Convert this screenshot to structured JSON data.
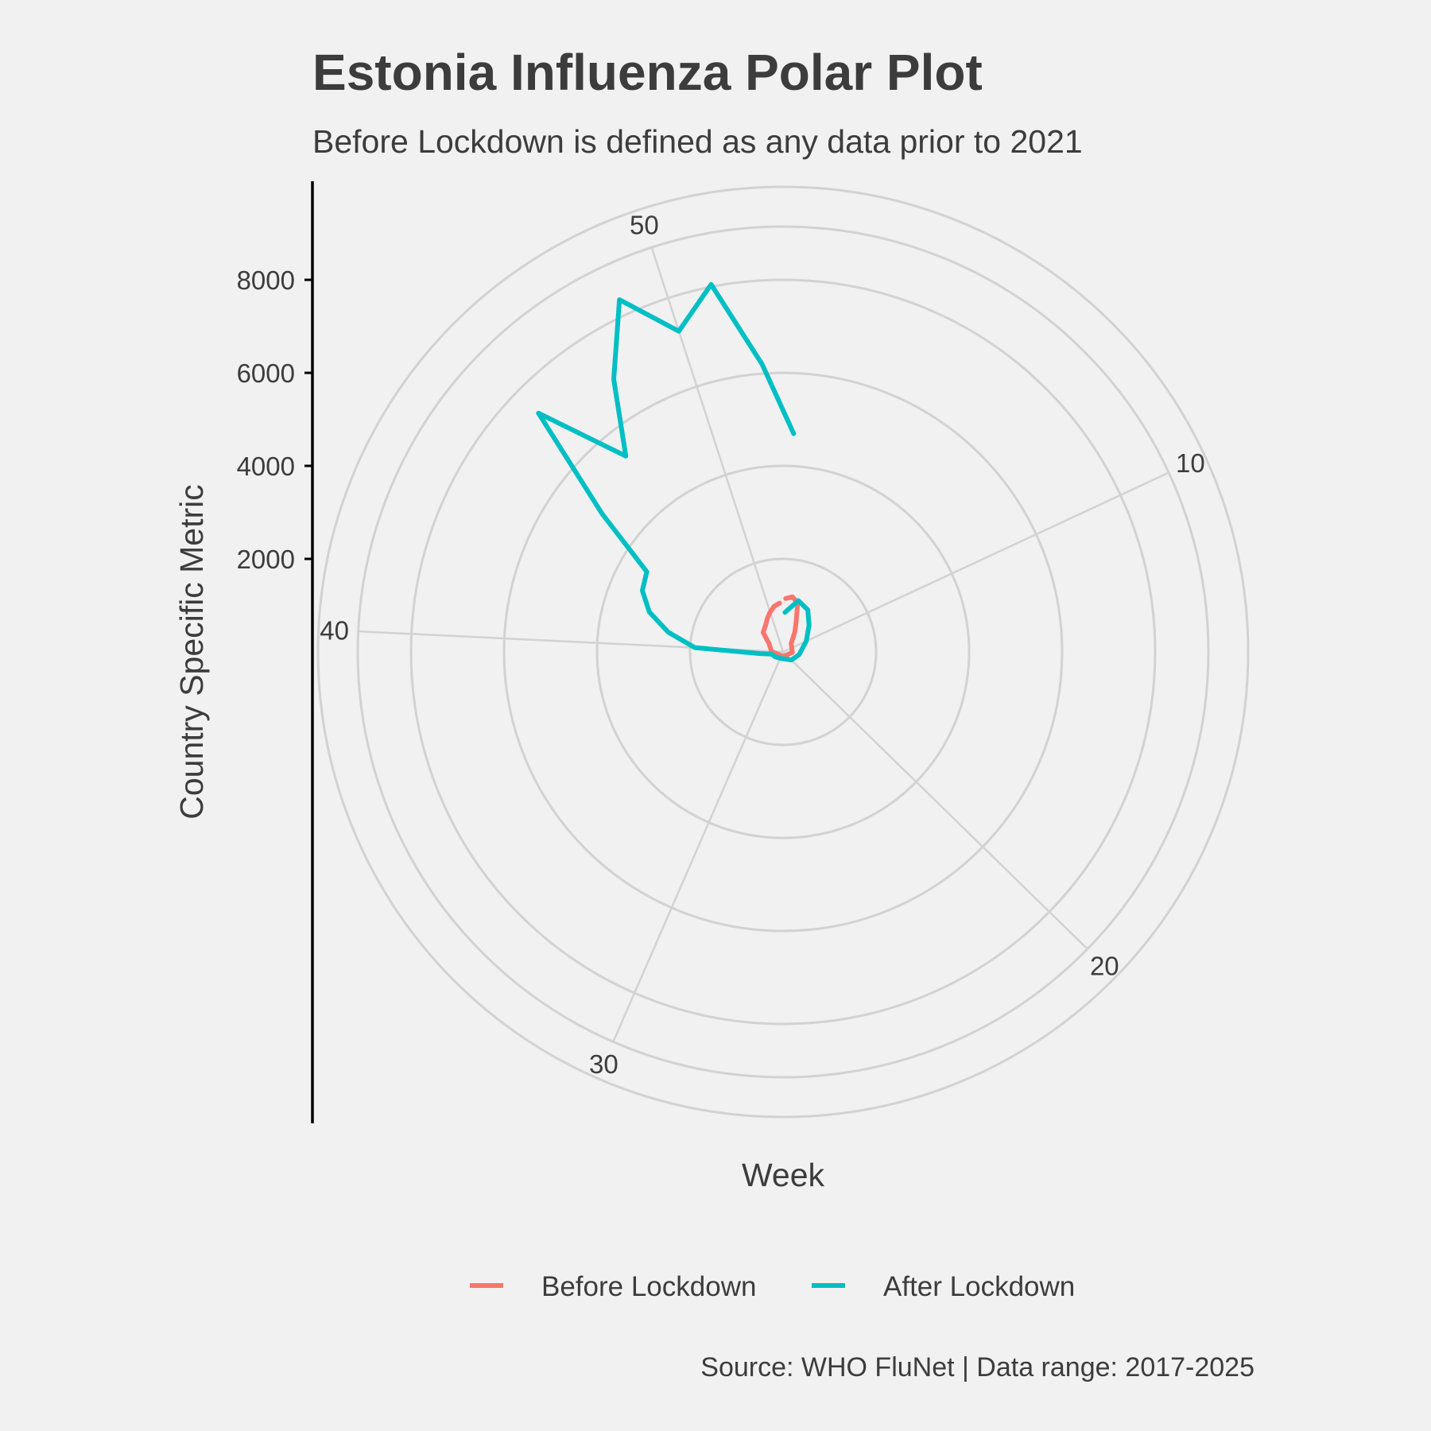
{
  "chart_data": {
    "type": "line",
    "coord": "polar",
    "title": "Estonia Influenza Polar Plot",
    "subtitle": "Before Lockdown is defined as any data prior to 2021",
    "xlabel": "Week",
    "ylabel": "Country Specific Metric",
    "caption": "Source: WHO FluNet | Data range: 2017-2025",
    "x_period": 52,
    "x_ticks": [
      "10",
      "20",
      "30",
      "40",
      "50"
    ],
    "x_tick_values": [
      10,
      20,
      30,
      40,
      50
    ],
    "y_ticks": [
      "2000",
      "4000",
      "6000",
      "8000"
    ],
    "y_tick_values": [
      2000,
      4000,
      6000,
      8000
    ],
    "ylim": [
      0,
      10000
    ],
    "grid": true,
    "legend_position": "bottom",
    "series": [
      {
        "name": "Before Lockdown",
        "color": "#f8766d",
        "points": [
          [
            1,
            1150
          ],
          [
            2,
            1200
          ],
          [
            3,
            1100
          ],
          [
            4,
            700
          ],
          [
            5,
            500
          ],
          [
            7,
            250
          ],
          [
            14,
            200
          ],
          [
            26,
            100
          ],
          [
            40,
            250
          ],
          [
            44,
            350
          ],
          [
            46,
            600
          ],
          [
            48,
            700
          ],
          [
            49,
            800
          ],
          [
            50,
            900
          ],
          [
            51,
            1000
          ],
          [
            52,
            1050
          ]
        ]
      },
      {
        "name": "After Lockdown",
        "color": "#00bfc4",
        "points": [
          [
            1,
            4700
          ],
          [
            52,
            6200
          ],
          [
            51,
            8050
          ],
          [
            50,
            7250
          ],
          [
            49,
            8350
          ],
          [
            48,
            6900
          ],
          [
            47,
            5400
          ],
          [
            46,
            7350
          ],
          [
            45,
            4900
          ],
          [
            44,
            3400
          ],
          [
            43,
            3300
          ],
          [
            42,
            3000
          ],
          [
            41,
            2500
          ],
          [
            40,
            1900
          ],
          [
            39,
            500
          ],
          [
            38,
            250
          ],
          [
            35,
            200
          ],
          [
            30,
            150
          ],
          [
            20,
            250
          ],
          [
            15,
            350
          ],
          [
            10,
            550
          ],
          [
            7,
            800
          ],
          [
            5,
            1050
          ],
          [
            3,
            1150
          ],
          [
            1,
            850
          ]
        ]
      }
    ]
  }
}
